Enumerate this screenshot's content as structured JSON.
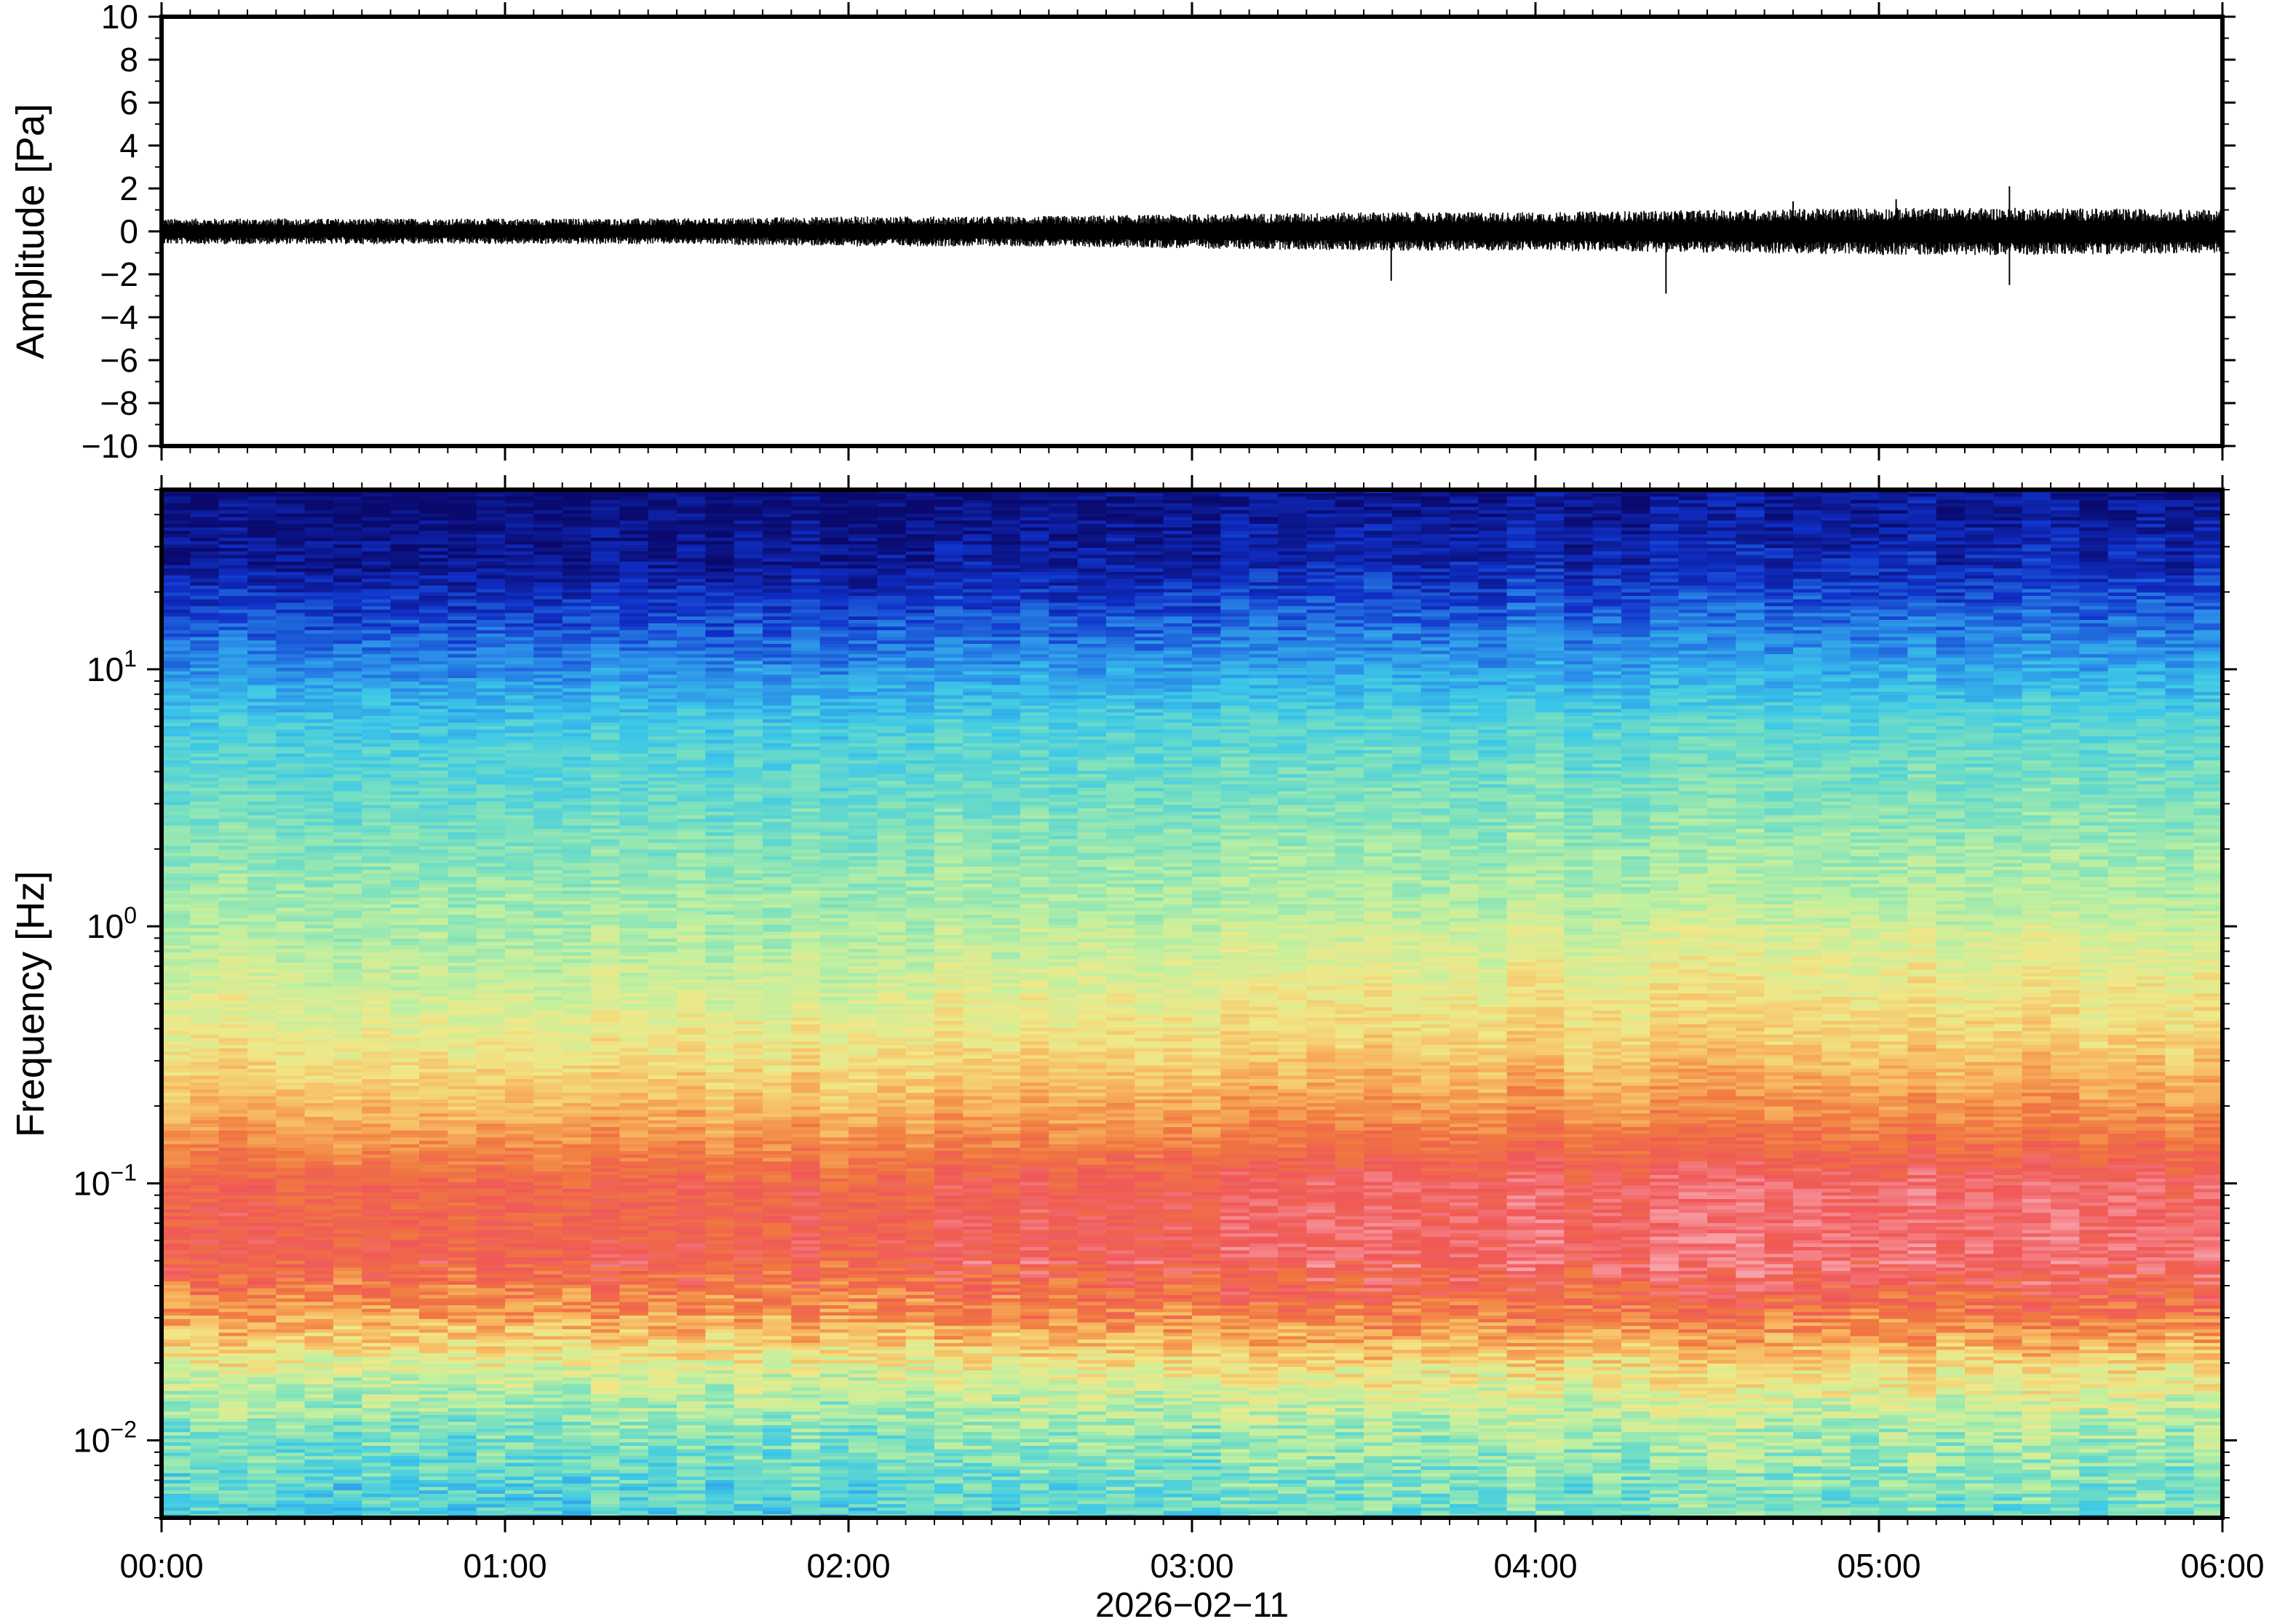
{
  "chart_data": [
    {
      "type": "line",
      "panel": "waveform",
      "ylabel": "Amplitude [Pa]",
      "ylim": [
        -10,
        10
      ],
      "yticks": [
        10,
        8,
        6,
        4,
        2,
        0,
        -2,
        -4,
        -6,
        -8,
        -10
      ],
      "ytick_labels": [
        "10",
        "8",
        "6",
        "4",
        "2",
        "0",
        "−2",
        "−4",
        "−6",
        "−8",
        "−10"
      ],
      "xlim_hours": [
        0,
        6
      ],
      "series": [
        {
          "color": "#000000",
          "envelope_t_hours": [
            0.0,
            0.5,
            1.0,
            1.5,
            2.0,
            2.5,
            3.0,
            3.5,
            4.0,
            4.5,
            5.0,
            5.5,
            6.0
          ],
          "envelope_amplitude_pa": [
            0.6,
            0.6,
            0.6,
            0.6,
            0.7,
            0.7,
            0.8,
            0.9,
            0.9,
            1.0,
            1.1,
            1.1,
            1.0
          ]
        }
      ],
      "spikes": [
        {
          "t_hours": 3.58,
          "value": -2.3
        },
        {
          "t_hours": 4.38,
          "value": -2.9
        },
        {
          "t_hours": 5.38,
          "value": 2.1
        },
        {
          "t_hours": 5.38,
          "value": -2.5
        },
        {
          "t_hours": 4.75,
          "value": 1.4
        },
        {
          "t_hours": 5.05,
          "value": 1.5
        }
      ]
    },
    {
      "type": "heatmap",
      "panel": "spectrogram",
      "ylabel": "Frequency [Hz]",
      "yscale": "log",
      "ylim": [
        0.005,
        50
      ],
      "yticks": [
        0.01,
        0.1,
        1,
        10
      ],
      "ytick_labels": [
        {
          "base": "10",
          "exp": "−2"
        },
        {
          "base": "10",
          "exp": "−1"
        },
        {
          "base": "10",
          "exp": "0"
        },
        {
          "base": "10",
          "exp": "1"
        }
      ],
      "colormap": [
        "#0a0a6e",
        "#1030c8",
        "#2a8ae8",
        "#3cc8e8",
        "#78e0c0",
        "#c0f0a0",
        "#f0e888",
        "#f8b860",
        "#f07840",
        "#f05858",
        "#f8a0a8"
      ],
      "band_profile": [
        {
          "freq_hz": 50,
          "level": 0.0
        },
        {
          "freq_hz": 25,
          "level": 0.05
        },
        {
          "freq_hz": 12,
          "level": 0.18
        },
        {
          "freq_hz": 6,
          "level": 0.32
        },
        {
          "freq_hz": 2,
          "level": 0.42
        },
        {
          "freq_hz": 0.8,
          "level": 0.5
        },
        {
          "freq_hz": 0.35,
          "level": 0.6
        },
        {
          "freq_hz": 0.18,
          "level": 0.72
        },
        {
          "freq_hz": 0.1,
          "level": 0.86
        },
        {
          "freq_hz": 0.05,
          "level": 0.88
        },
        {
          "freq_hz": 0.03,
          "level": 0.74
        },
        {
          "freq_hz": 0.018,
          "level": 0.55
        },
        {
          "freq_hz": 0.011,
          "level": 0.42
        },
        {
          "freq_hz": 0.005,
          "level": 0.33
        }
      ],
      "time_trend": [
        {
          "t_hours": 0,
          "shift": 0.0
        },
        {
          "t_hours": 2,
          "shift": 0.0
        },
        {
          "t_hours": 3,
          "shift": 0.03
        },
        {
          "t_hours": 4,
          "shift": 0.05
        },
        {
          "t_hours": 5,
          "shift": 0.06
        },
        {
          "t_hours": 6,
          "shift": 0.04
        }
      ]
    }
  ],
  "x_axis": {
    "tick_labels": [
      "00:00",
      "01:00",
      "02:00",
      "03:00",
      "04:00",
      "05:00",
      "06:00"
    ],
    "date_label": "2026−02−11",
    "xlim": [
      "2026-02-11T00:00",
      "2026-02-11T06:00"
    ]
  }
}
